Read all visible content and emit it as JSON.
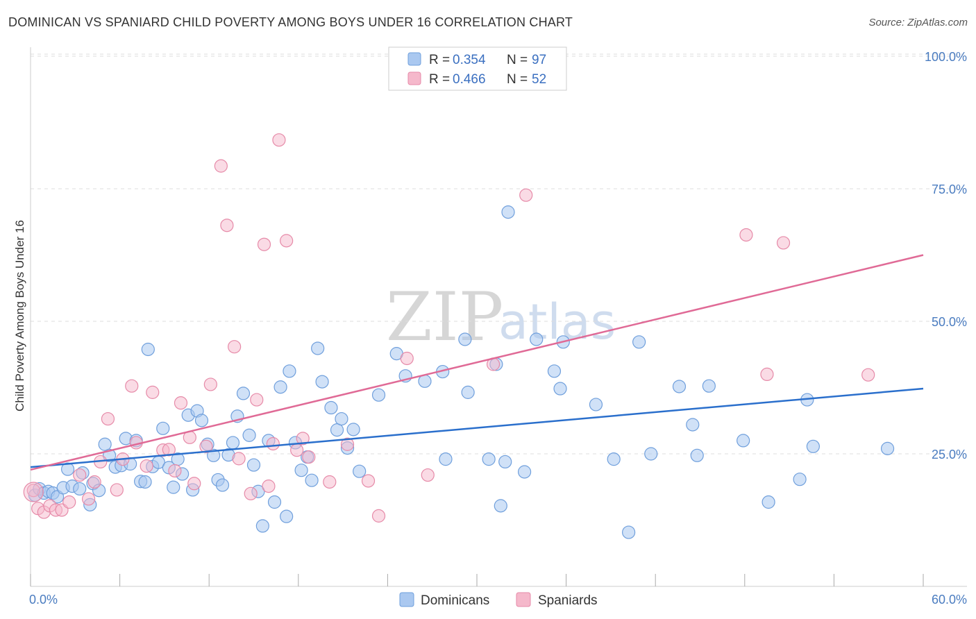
{
  "title": "DOMINICAN VS SPANIARD CHILD POVERTY AMONG BOYS UNDER 16 CORRELATION CHART",
  "source": "Source: ZipAtlas.com",
  "watermark": {
    "zip": "ZIP",
    "atlas": "atlas"
  },
  "colors": {
    "dominicans_fill": "#aac8f0",
    "dominicans_stroke": "#6f9fdc",
    "dominicans_line": "#2a6fcc",
    "spaniards_fill": "#f5b8cb",
    "spaniards_stroke": "#e68aa8",
    "spaniards_line": "#e06a96",
    "tick_label": "#4a7cc0",
    "grid": "#dddddd"
  },
  "legend": {
    "r_label": "R =",
    "n_label": "N =",
    "dominicans": {
      "r": "0.354",
      "n": "97"
    },
    "spaniards": {
      "r": "0.466",
      "n": "52"
    }
  },
  "chart_data": {
    "type": "scatter",
    "title": "DOMINICAN VS SPANIARD CHILD POVERTY AMONG BOYS UNDER 16 CORRELATION CHART",
    "xlabel": "",
    "ylabel": "Child Poverty Among Boys Under 16",
    "xlim": [
      0,
      60
    ],
    "ylim": [
      0,
      105
    ],
    "x_tick_labels": [
      "0.0%",
      "60.0%"
    ],
    "y_ticks": [
      25,
      50,
      75,
      100
    ],
    "y_tick_labels": [
      "25.0%",
      "50.0%",
      "75.0%",
      "100.0%"
    ],
    "grid": "horizontal dashed",
    "legend_position": "top-center",
    "series": [
      {
        "name": "Dominicans",
        "r": 0.354,
        "n": 97,
        "trend": [
          [
            0,
            22.5
          ],
          [
            60,
            37.3
          ]
        ],
        "points": [
          [
            0.3,
            17.2
          ],
          [
            0.6,
            18.4
          ],
          [
            0.9,
            17.6
          ],
          [
            1.2,
            17.9
          ],
          [
            1.5,
            17.6
          ],
          [
            1.8,
            16.9
          ],
          [
            2.2,
            18.6
          ],
          [
            2.5,
            22.1
          ],
          [
            2.8,
            18.9
          ],
          [
            3.3,
            18.4
          ],
          [
            3.5,
            21.4
          ],
          [
            4.0,
            15.4
          ],
          [
            4.2,
            19.4
          ],
          [
            4.6,
            18.1
          ],
          [
            5.0,
            26.8
          ],
          [
            5.3,
            24.7
          ],
          [
            5.7,
            22.5
          ],
          [
            6.1,
            22.8
          ],
          [
            6.4,
            27.9
          ],
          [
            6.7,
            23.1
          ],
          [
            7.1,
            27.5
          ],
          [
            7.4,
            19.8
          ],
          [
            7.7,
            19.7
          ],
          [
            7.9,
            44.7
          ],
          [
            8.2,
            22.6
          ],
          [
            8.6,
            23.4
          ],
          [
            8.9,
            29.8
          ],
          [
            9.3,
            22.4
          ],
          [
            9.6,
            18.7
          ],
          [
            9.9,
            24.0
          ],
          [
            10.2,
            21.2
          ],
          [
            10.6,
            32.3
          ],
          [
            10.9,
            18.2
          ],
          [
            11.2,
            33.1
          ],
          [
            11.5,
            31.3
          ],
          [
            11.9,
            26.8
          ],
          [
            12.3,
            24.7
          ],
          [
            12.6,
            20.1
          ],
          [
            12.9,
            19.1
          ],
          [
            13.3,
            24.8
          ],
          [
            13.6,
            27.1
          ],
          [
            13.9,
            32.1
          ],
          [
            14.3,
            36.4
          ],
          [
            14.7,
            28.5
          ],
          [
            15.0,
            22.9
          ],
          [
            15.3,
            17.9
          ],
          [
            15.6,
            11.4
          ],
          [
            16.0,
            27.5
          ],
          [
            16.4,
            15.9
          ],
          [
            16.8,
            37.6
          ],
          [
            17.2,
            13.2
          ],
          [
            17.4,
            40.6
          ],
          [
            17.8,
            27.1
          ],
          [
            18.2,
            21.9
          ],
          [
            18.6,
            24.4
          ],
          [
            18.9,
            20.0
          ],
          [
            19.3,
            44.9
          ],
          [
            19.6,
            38.6
          ],
          [
            20.2,
            33.7
          ],
          [
            20.6,
            29.5
          ],
          [
            20.9,
            31.6
          ],
          [
            21.3,
            26.1
          ],
          [
            21.7,
            29.6
          ],
          [
            22.1,
            21.7
          ],
          [
            23.4,
            36.1
          ],
          [
            24.6,
            43.9
          ],
          [
            25.2,
            39.7
          ],
          [
            26.5,
            38.7
          ],
          [
            27.7,
            40.5
          ],
          [
            27.9,
            24.0
          ],
          [
            29.2,
            46.6
          ],
          [
            29.4,
            36.6
          ],
          [
            30.8,
            24.0
          ],
          [
            31.3,
            41.9
          ],
          [
            31.6,
            15.2
          ],
          [
            31.9,
            23.5
          ],
          [
            32.1,
            70.6
          ],
          [
            33.2,
            21.6
          ],
          [
            34.0,
            46.6
          ],
          [
            35.2,
            40.6
          ],
          [
            35.6,
            37.3
          ],
          [
            35.8,
            46.1
          ],
          [
            38.0,
            34.3
          ],
          [
            39.2,
            24.0
          ],
          [
            40.2,
            10.2
          ],
          [
            40.9,
            46.1
          ],
          [
            41.7,
            25.0
          ],
          [
            43.6,
            37.7
          ],
          [
            44.5,
            30.5
          ],
          [
            44.8,
            24.7
          ],
          [
            45.6,
            37.8
          ],
          [
            47.9,
            27.5
          ],
          [
            49.6,
            15.9
          ],
          [
            51.7,
            20.2
          ],
          [
            52.2,
            35.2
          ],
          [
            52.6,
            26.4
          ],
          [
            57.6,
            26.0
          ]
        ]
      },
      {
        "name": "Spaniards",
        "r": 0.466,
        "n": 52,
        "trend": [
          [
            0,
            22.0
          ],
          [
            60,
            62.5
          ]
        ],
        "points": [
          [
            0.2,
            18.1
          ],
          [
            0.5,
            14.7
          ],
          [
            0.9,
            14.0
          ],
          [
            1.3,
            15.2
          ],
          [
            1.7,
            14.4
          ],
          [
            2.1,
            14.4
          ],
          [
            2.6,
            15.9
          ],
          [
            3.3,
            21.0
          ],
          [
            3.9,
            16.5
          ],
          [
            4.3,
            19.7
          ],
          [
            4.7,
            23.5
          ],
          [
            5.2,
            31.6
          ],
          [
            5.8,
            18.2
          ],
          [
            6.2,
            24.0
          ],
          [
            6.8,
            37.8
          ],
          [
            7.1,
            27.1
          ],
          [
            7.8,
            22.7
          ],
          [
            8.2,
            36.6
          ],
          [
            8.9,
            25.7
          ],
          [
            9.3,
            25.8
          ],
          [
            9.7,
            21.8
          ],
          [
            10.1,
            34.6
          ],
          [
            10.7,
            28.1
          ],
          [
            11.0,
            19.4
          ],
          [
            11.8,
            26.4
          ],
          [
            12.1,
            38.1
          ],
          [
            12.8,
            79.3
          ],
          [
            13.2,
            68.1
          ],
          [
            13.7,
            45.2
          ],
          [
            14.0,
            24.1
          ],
          [
            14.8,
            17.5
          ],
          [
            15.2,
            35.2
          ],
          [
            15.7,
            64.5
          ],
          [
            16.0,
            18.9
          ],
          [
            16.3,
            26.9
          ],
          [
            16.7,
            84.2
          ],
          [
            17.2,
            65.2
          ],
          [
            17.9,
            25.7
          ],
          [
            18.3,
            27.9
          ],
          [
            18.7,
            24.4
          ],
          [
            20.1,
            19.7
          ],
          [
            21.3,
            26.8
          ],
          [
            22.7,
            19.9
          ],
          [
            23.4,
            13.3
          ],
          [
            25.3,
            43.0
          ],
          [
            26.7,
            21.0
          ],
          [
            31.1,
            41.9
          ],
          [
            33.3,
            73.8
          ],
          [
            48.1,
            66.3
          ],
          [
            50.6,
            64.8
          ],
          [
            49.5,
            40.0
          ],
          [
            56.3,
            39.9
          ]
        ]
      }
    ]
  },
  "bottom_legend": {
    "dominicans": "Dominicans",
    "spaniards": "Spaniards"
  }
}
